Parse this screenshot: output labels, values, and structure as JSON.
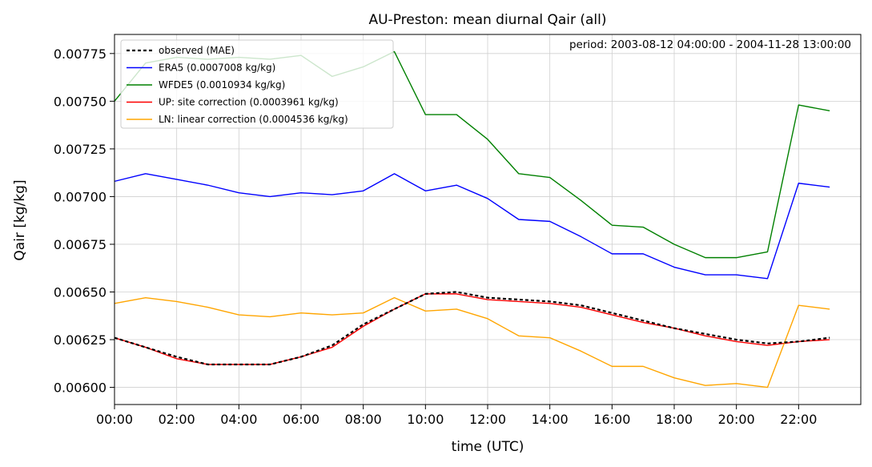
{
  "chart_data": {
    "type": "line",
    "title": "AU-Preston: mean diurnal Qair (all)",
    "annotation": "period: 2003-08-12 04:00:00 - 2004-11-28 13:00:00",
    "xlabel": "time (UTC)",
    "ylabel": "Qair [kg/kg]",
    "xlim": [
      0,
      24
    ],
    "ylim": [
      0.00591,
      0.00785
    ],
    "x_ticks": [
      0,
      2,
      4,
      6,
      8,
      10,
      12,
      14,
      16,
      18,
      20,
      22
    ],
    "x_tick_labels": [
      "00:00",
      "02:00",
      "04:00",
      "06:00",
      "08:00",
      "10:00",
      "12:00",
      "14:00",
      "16:00",
      "18:00",
      "20:00",
      "22:00"
    ],
    "y_ticks": [
      0.006,
      0.00625,
      0.0065,
      0.00675,
      0.007,
      0.00725,
      0.0075,
      0.00775
    ],
    "y_tick_labels": [
      "0.00600",
      "0.00625",
      "0.00650",
      "0.00675",
      "0.00700",
      "0.00725",
      "0.00750",
      "0.00775"
    ],
    "grid": true,
    "legend_position": "top-left",
    "x": [
      0,
      1,
      2,
      3,
      4,
      5,
      6,
      7,
      8,
      9,
      10,
      11,
      12,
      13,
      14,
      15,
      16,
      17,
      18,
      19,
      20,
      21,
      22,
      23
    ],
    "series": [
      {
        "name": "observed (MAE)",
        "color": "#000000",
        "dashed": true,
        "values": [
          0.00626,
          0.00621,
          0.00616,
          0.00612,
          0.00612,
          0.00612,
          0.00616,
          0.00622,
          0.00633,
          0.00641,
          0.00649,
          0.0065,
          0.00647,
          0.00646,
          0.00645,
          0.00643,
          0.00639,
          0.00635,
          0.00631,
          0.00628,
          0.00625,
          0.00623,
          0.00624,
          0.00626
        ]
      },
      {
        "name": "ERA5 (0.0007008 kg/kg)",
        "color": "#0000ff",
        "dashed": false,
        "values": [
          0.00708,
          0.00712,
          0.00709,
          0.00706,
          0.00702,
          0.007,
          0.00702,
          0.00701,
          0.00703,
          0.00712,
          0.00703,
          0.00706,
          0.00699,
          0.00688,
          0.00687,
          0.00679,
          0.0067,
          0.0067,
          0.00663,
          0.00659,
          0.00659,
          0.00657,
          0.00707,
          0.00705
        ]
      },
      {
        "name": "WFDE5 (0.0010934 kg/kg)",
        "color": "#008000",
        "dashed": false,
        "values": [
          0.0075,
          0.0077,
          0.00773,
          0.00772,
          0.00773,
          0.00772,
          0.00774,
          0.00763,
          0.00768,
          0.00776,
          0.00743,
          0.00743,
          0.0073,
          0.00712,
          0.0071,
          0.00698,
          0.00685,
          0.00684,
          0.00675,
          0.00668,
          0.00668,
          0.00671,
          0.00748,
          0.00745
        ]
      },
      {
        "name": "UP: site correction (0.0003961 kg/kg)",
        "color": "#ff0000",
        "dashed": false,
        "values": [
          0.00626,
          0.00621,
          0.00615,
          0.00612,
          0.00612,
          0.00612,
          0.00616,
          0.00621,
          0.00632,
          0.00641,
          0.00649,
          0.00649,
          0.00646,
          0.00645,
          0.00644,
          0.00642,
          0.00638,
          0.00634,
          0.00631,
          0.00627,
          0.00624,
          0.00622,
          0.00624,
          0.00625
        ]
      },
      {
        "name": "LN: linear correction (0.0004536 kg/kg)",
        "color": "#ffa500",
        "dashed": false,
        "values": [
          0.00644,
          0.00647,
          0.00645,
          0.00642,
          0.00638,
          0.00637,
          0.00639,
          0.00638,
          0.00639,
          0.00647,
          0.0064,
          0.00641,
          0.00636,
          0.00627,
          0.00626,
          0.00619,
          0.00611,
          0.00611,
          0.00605,
          0.00601,
          0.00602,
          0.006,
          0.00643,
          0.00641
        ]
      }
    ]
  }
}
